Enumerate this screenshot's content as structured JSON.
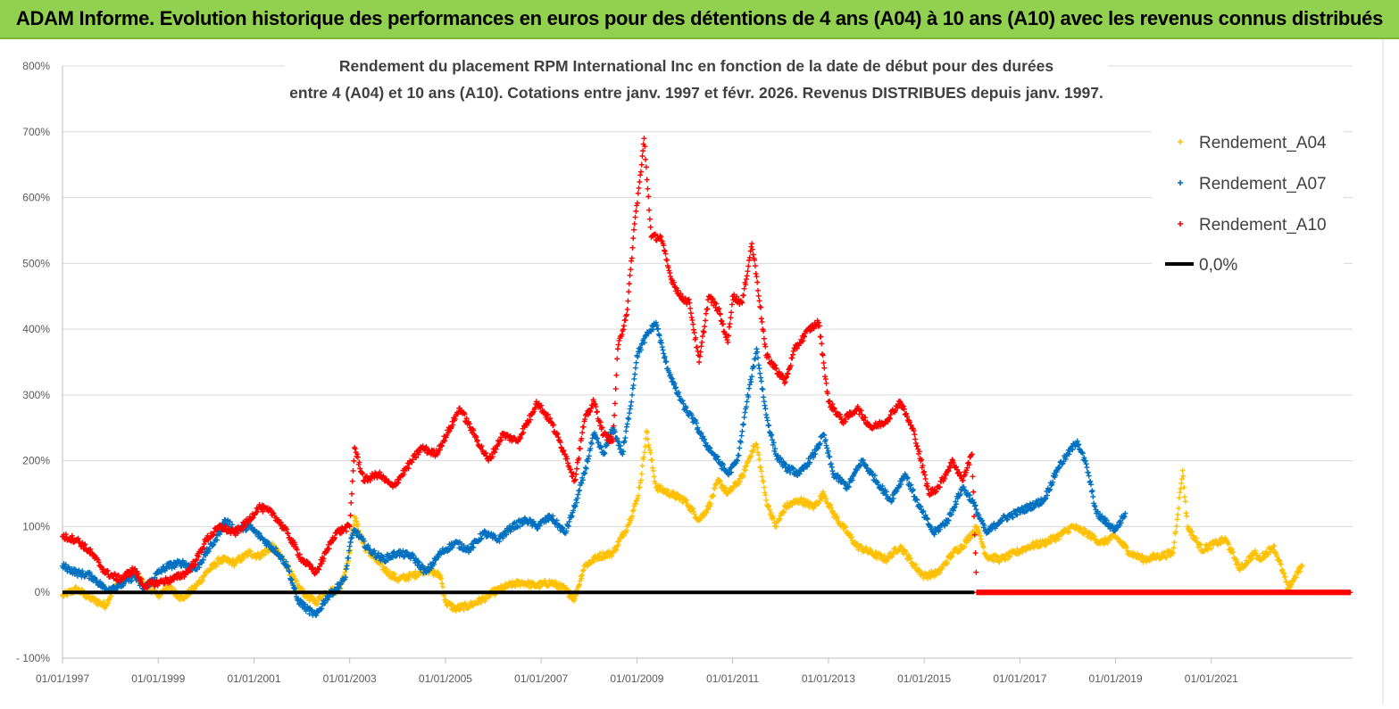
{
  "header": {
    "banner_title": "ADAM Informe. Evolution historique des performances en euros pour des détentions de 4 ans (A04) à 10 ans (A10) avec les revenus connus distribués"
  },
  "chart_data": {
    "type": "scatter",
    "title_line1": "Rendement du placement RPM International Inc en fonction de la date de début pour des durées",
    "title_line2": "entre 4 (A04) et 10 ans (A10).  Cotations entre janv. 1997 et févr. 2026. Revenus DISTRIBUES depuis janv. 1997.",
    "xlabel": "",
    "ylabel": "",
    "x_range": [
      1997.0,
      2023.95
    ],
    "ylim": [
      -100,
      800
    ],
    "y_ticks": [
      -100,
      0,
      100,
      200,
      300,
      400,
      500,
      600,
      700,
      800
    ],
    "y_tick_labels": [
      "- 100%",
      "0%",
      "100%",
      "200%",
      "300%",
      "400%",
      "500%",
      "600%",
      "700%",
      "800%"
    ],
    "x_ticks": [
      1997,
      1999,
      2001,
      2003,
      2005,
      2007,
      2009,
      2011,
      2013,
      2015,
      2017,
      2019,
      2021
    ],
    "x_tick_labels": [
      "01/01/1997",
      "01/01/1999",
      "01/01/2001",
      "01/01/2003",
      "01/01/2005",
      "01/01/2007",
      "01/01/2009",
      "01/01/2011",
      "01/01/2013",
      "01/01/2015",
      "01/01/2017",
      "01/01/2019",
      "01/01/2021"
    ],
    "legend_position": "top-right",
    "series": [
      {
        "name": "Rendement_A04",
        "color": "#ffc000",
        "marker": "plus",
        "points": [
          [
            1997.0,
            -5
          ],
          [
            1997.3,
            5
          ],
          [
            1997.6,
            -10
          ],
          [
            1997.9,
            -20
          ],
          [
            1998.1,
            10
          ],
          [
            1998.4,
            30
          ],
          [
            1998.7,
            15
          ],
          [
            1999.0,
            -5
          ],
          [
            1999.2,
            10
          ],
          [
            1999.5,
            -10
          ],
          [
            1999.8,
            10
          ],
          [
            2000.0,
            30
          ],
          [
            2000.3,
            50
          ],
          [
            2000.6,
            45
          ],
          [
            2000.9,
            60
          ],
          [
            2001.1,
            55
          ],
          [
            2001.4,
            70
          ],
          [
            2001.7,
            40
          ],
          [
            2001.9,
            10
          ],
          [
            2002.1,
            -5
          ],
          [
            2002.3,
            -15
          ],
          [
            2002.5,
            0
          ],
          [
            2002.8,
            5
          ],
          [
            2003.0,
            60
          ],
          [
            2003.1,
            115
          ],
          [
            2003.3,
            70
          ],
          [
            2003.6,
            45
          ],
          [
            2003.8,
            30
          ],
          [
            2004.0,
            20
          ],
          [
            2004.3,
            25
          ],
          [
            2004.6,
            35
          ],
          [
            2004.9,
            25
          ],
          [
            2005.0,
            -15
          ],
          [
            2005.2,
            -25
          ],
          [
            2005.5,
            -20
          ],
          [
            2005.8,
            -10
          ],
          [
            2006.0,
            0
          ],
          [
            2006.3,
            10
          ],
          [
            2006.6,
            15
          ],
          [
            2006.9,
            10
          ],
          [
            2007.2,
            15
          ],
          [
            2007.5,
            5
          ],
          [
            2007.7,
            -10
          ],
          [
            2007.9,
            40
          ],
          [
            2008.2,
            55
          ],
          [
            2008.5,
            60
          ],
          [
            2008.8,
            100
          ],
          [
            2009.0,
            140
          ],
          [
            2009.1,
            180
          ],
          [
            2009.2,
            245
          ],
          [
            2009.4,
            160
          ],
          [
            2009.7,
            150
          ],
          [
            2010.0,
            140
          ],
          [
            2010.3,
            110
          ],
          [
            2010.5,
            130
          ],
          [
            2010.7,
            170
          ],
          [
            2010.9,
            150
          ],
          [
            2011.2,
            175
          ],
          [
            2011.4,
            215
          ],
          [
            2011.5,
            225
          ],
          [
            2011.7,
            140
          ],
          [
            2011.9,
            100
          ],
          [
            2012.1,
            130
          ],
          [
            2012.4,
            140
          ],
          [
            2012.7,
            130
          ],
          [
            2012.9,
            150
          ],
          [
            2013.1,
            120
          ],
          [
            2013.4,
            90
          ],
          [
            2013.6,
            70
          ],
          [
            2013.9,
            60
          ],
          [
            2014.2,
            50
          ],
          [
            2014.5,
            70
          ],
          [
            2014.8,
            40
          ],
          [
            2015.0,
            25
          ],
          [
            2015.3,
            30
          ],
          [
            2015.6,
            60
          ],
          [
            2015.8,
            70
          ],
          [
            2016.1,
            100
          ],
          [
            2016.3,
            55
          ],
          [
            2016.6,
            50
          ],
          [
            2016.9,
            60
          ],
          [
            2017.2,
            70
          ],
          [
            2017.5,
            75
          ],
          [
            2017.8,
            85
          ],
          [
            2018.1,
            100
          ],
          [
            2018.4,
            90
          ],
          [
            2018.7,
            75
          ],
          [
            2019.0,
            85
          ],
          [
            2019.3,
            60
          ],
          [
            2019.6,
            50
          ],
          [
            2019.9,
            55
          ],
          [
            2020.2,
            60
          ],
          [
            2020.4,
            185
          ],
          [
            2020.5,
            100
          ],
          [
            2020.8,
            65
          ],
          [
            2021.1,
            75
          ],
          [
            2021.3,
            80
          ],
          [
            2021.6,
            35
          ],
          [
            2021.9,
            60
          ],
          [
            2022.0,
            50
          ],
          [
            2022.3,
            70
          ],
          [
            2022.5,
            30
          ],
          [
            2022.6,
            5
          ],
          [
            2022.8,
            30
          ],
          [
            2022.9,
            40
          ]
        ]
      },
      {
        "name": "Rendement_A07",
        "color": "#0070c0",
        "marker": "plus",
        "points": [
          [
            1997.0,
            40
          ],
          [
            1997.3,
            30
          ],
          [
            1997.6,
            25
          ],
          [
            1997.9,
            5
          ],
          [
            1998.2,
            10
          ],
          [
            1998.5,
            25
          ],
          [
            1998.7,
            5
          ],
          [
            1999.0,
            30
          ],
          [
            1999.2,
            40
          ],
          [
            1999.5,
            45
          ],
          [
            1999.8,
            35
          ],
          [
            2000.0,
            60
          ],
          [
            2000.2,
            80
          ],
          [
            2000.4,
            110
          ],
          [
            2000.6,
            95
          ],
          [
            2000.9,
            100
          ],
          [
            2001.2,
            80
          ],
          [
            2001.5,
            60
          ],
          [
            2001.7,
            40
          ],
          [
            2001.9,
            -10
          ],
          [
            2002.1,
            -25
          ],
          [
            2002.3,
            -35
          ],
          [
            2002.5,
            -10
          ],
          [
            2002.7,
            5
          ],
          [
            2002.9,
            20
          ],
          [
            2003.0,
            70
          ],
          [
            2003.1,
            95
          ],
          [
            2003.4,
            65
          ],
          [
            2003.7,
            50
          ],
          [
            2004.0,
            60
          ],
          [
            2004.3,
            55
          ],
          [
            2004.6,
            30
          ],
          [
            2004.9,
            60
          ],
          [
            2005.2,
            75
          ],
          [
            2005.5,
            65
          ],
          [
            2005.8,
            90
          ],
          [
            2006.1,
            80
          ],
          [
            2006.4,
            100
          ],
          [
            2006.7,
            110
          ],
          [
            2006.9,
            100
          ],
          [
            2007.2,
            115
          ],
          [
            2007.5,
            90
          ],
          [
            2007.7,
            130
          ],
          [
            2007.9,
            180
          ],
          [
            2008.1,
            240
          ],
          [
            2008.3,
            210
          ],
          [
            2008.5,
            250
          ],
          [
            2008.7,
            210
          ],
          [
            2008.9,
            300
          ],
          [
            2009.0,
            360
          ],
          [
            2009.2,
            390
          ],
          [
            2009.4,
            410
          ],
          [
            2009.6,
            350
          ],
          [
            2009.8,
            310
          ],
          [
            2010.0,
            280
          ],
          [
            2010.2,
            260
          ],
          [
            2010.4,
            230
          ],
          [
            2010.6,
            210
          ],
          [
            2010.9,
            180
          ],
          [
            2011.1,
            200
          ],
          [
            2011.3,
            290
          ],
          [
            2011.5,
            370
          ],
          [
            2011.7,
            270
          ],
          [
            2011.9,
            210
          ],
          [
            2012.1,
            190
          ],
          [
            2012.4,
            180
          ],
          [
            2012.7,
            210
          ],
          [
            2012.9,
            240
          ],
          [
            2013.1,
            180
          ],
          [
            2013.4,
            160
          ],
          [
            2013.7,
            200
          ],
          [
            2014.0,
            170
          ],
          [
            2014.3,
            140
          ],
          [
            2014.6,
            180
          ],
          [
            2014.9,
            130
          ],
          [
            2015.2,
            90
          ],
          [
            2015.5,
            110
          ],
          [
            2015.8,
            160
          ],
          [
            2016.0,
            140
          ],
          [
            2016.3,
            90
          ],
          [
            2016.6,
            110
          ],
          [
            2016.9,
            120
          ],
          [
            2017.2,
            130
          ],
          [
            2017.5,
            140
          ],
          [
            2017.8,
            190
          ],
          [
            2018.0,
            210
          ],
          [
            2018.2,
            230
          ],
          [
            2018.4,
            190
          ],
          [
            2018.6,
            120
          ],
          [
            2018.9,
            100
          ],
          [
            2019.0,
            95
          ],
          [
            2019.2,
            120
          ]
        ]
      },
      {
        "name": "Rendement_A10",
        "color": "#ff0000",
        "marker": "plus",
        "points": [
          [
            1997.0,
            85
          ],
          [
            1997.3,
            80
          ],
          [
            1997.6,
            60
          ],
          [
            1997.9,
            30
          ],
          [
            1998.2,
            20
          ],
          [
            1998.5,
            35
          ],
          [
            1998.7,
            10
          ],
          [
            1999.0,
            15
          ],
          [
            1999.3,
            20
          ],
          [
            1999.6,
            30
          ],
          [
            1999.8,
            50
          ],
          [
            2000.0,
            80
          ],
          [
            2000.3,
            100
          ],
          [
            2000.6,
            90
          ],
          [
            2000.9,
            110
          ],
          [
            2001.1,
            130
          ],
          [
            2001.4,
            120
          ],
          [
            2001.7,
            90
          ],
          [
            2002.0,
            50
          ],
          [
            2002.3,
            30
          ],
          [
            2002.5,
            60
          ],
          [
            2002.7,
            90
          ],
          [
            2003.0,
            100
          ],
          [
            2003.1,
            220
          ],
          [
            2003.3,
            170
          ],
          [
            2003.6,
            180
          ],
          [
            2003.9,
            160
          ],
          [
            2004.2,
            190
          ],
          [
            2004.5,
            220
          ],
          [
            2004.8,
            210
          ],
          [
            2005.1,
            250
          ],
          [
            2005.3,
            280
          ],
          [
            2005.6,
            240
          ],
          [
            2005.9,
            200
          ],
          [
            2006.2,
            240
          ],
          [
            2006.5,
            230
          ],
          [
            2006.8,
            270
          ],
          [
            2006.9,
            290
          ],
          [
            2007.2,
            260
          ],
          [
            2007.5,
            210
          ],
          [
            2007.7,
            170
          ],
          [
            2007.9,
            260
          ],
          [
            2008.1,
            290
          ],
          [
            2008.3,
            240
          ],
          [
            2008.5,
            230
          ],
          [
            2008.6,
            370
          ],
          [
            2008.8,
            430
          ],
          [
            2008.95,
            560
          ],
          [
            2009.1,
            650
          ],
          [
            2009.15,
            690
          ],
          [
            2009.3,
            540
          ],
          [
            2009.5,
            540
          ],
          [
            2009.7,
            480
          ],
          [
            2009.9,
            450
          ],
          [
            2010.1,
            440
          ],
          [
            2010.3,
            350
          ],
          [
            2010.5,
            450
          ],
          [
            2010.7,
            430
          ],
          [
            2010.9,
            380
          ],
          [
            2011.0,
            450
          ],
          [
            2011.2,
            440
          ],
          [
            2011.4,
            530
          ],
          [
            2011.5,
            480
          ],
          [
            2011.7,
            360
          ],
          [
            2011.9,
            340
          ],
          [
            2012.1,
            320
          ],
          [
            2012.3,
            370
          ],
          [
            2012.6,
            400
          ],
          [
            2012.8,
            410
          ],
          [
            2013.0,
            290
          ],
          [
            2013.3,
            260
          ],
          [
            2013.6,
            280
          ],
          [
            2013.9,
            250
          ],
          [
            2014.2,
            260
          ],
          [
            2014.5,
            290
          ],
          [
            2014.8,
            240
          ],
          [
            2015.1,
            150
          ],
          [
            2015.3,
            160
          ],
          [
            2015.6,
            200
          ],
          [
            2015.8,
            170
          ],
          [
            2016.0,
            210
          ],
          [
            2016.1,
            0
          ],
          [
            2017.0,
            0
          ],
          [
            2018.0,
            0
          ],
          [
            2019.0,
            0
          ],
          [
            2020.0,
            0
          ],
          [
            2021.0,
            0
          ],
          [
            2022.0,
            0
          ],
          [
            2023.0,
            0
          ],
          [
            2023.9,
            0
          ]
        ]
      }
    ],
    "reference_line": {
      "name": "0,0%",
      "value": 0,
      "color": "#000000"
    }
  }
}
